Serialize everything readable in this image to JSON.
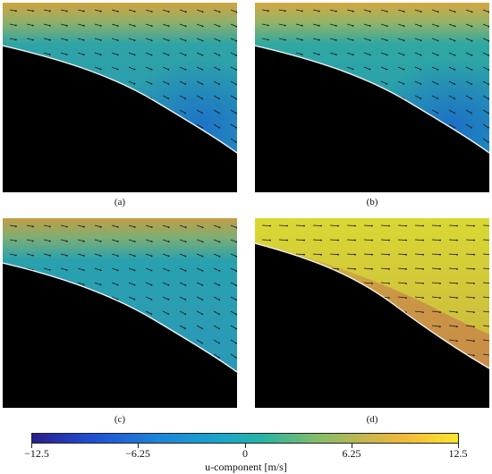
{
  "panels": [
    {
      "caption": "(a)",
      "bg_top": "#c79a3e",
      "bg_main": "#2fa3a8",
      "bg_dark": "#1f78c4",
      "gradient": "teal"
    },
    {
      "caption": "(b)",
      "bg_top": "#c9a146",
      "bg_main": "#2ea7a3",
      "bg_dark": "#1d73c6",
      "gradient": "teal"
    },
    {
      "caption": "(c)",
      "bg_top": "#b99a45",
      "bg_main": "#28a0b0",
      "bg_dark": "#2a8ec0",
      "gradient": "teal"
    },
    {
      "caption": "(d)",
      "bg_top": "#d8d234",
      "bg_main": "#c9b848",
      "bg_dark": "#c88a46",
      "gradient": "yellow"
    }
  ],
  "colorbar": {
    "ticks": [
      "−12.5",
      "−6.25",
      "0",
      "6.25",
      "12.5"
    ],
    "label": "u-component [m/s]"
  }
}
